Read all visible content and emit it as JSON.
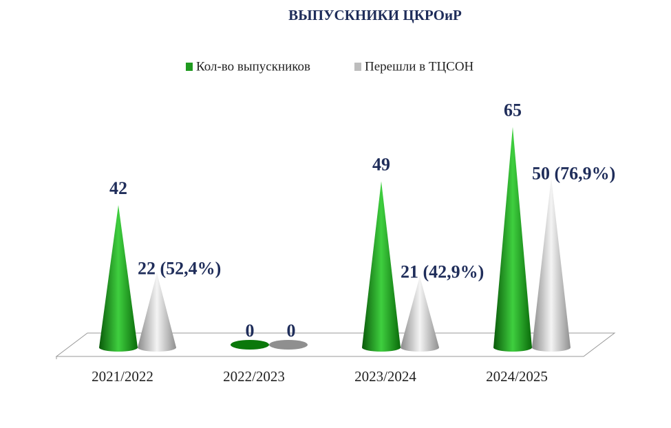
{
  "chart_data": {
    "type": "cone",
    "title": "ВЫПУСКНИКИ ЦКРОиР",
    "categories": [
      "2021/2022",
      "2022/2023",
      "2023/2024",
      "2024/2025"
    ],
    "series": [
      {
        "name": "Кол-во выпускников",
        "color": "#1f9a1f",
        "values": [
          42,
          0,
          49,
          65
        ]
      },
      {
        "name": "Перешли в ТЦСОН",
        "color": "#bdbdbd",
        "values": [
          22,
          0,
          21,
          50
        ],
        "value_labels": [
          "22 (52,4%)",
          "0",
          "21 (42,9%)",
          "50 (76,9%)"
        ]
      }
    ],
    "legend": "top"
  }
}
